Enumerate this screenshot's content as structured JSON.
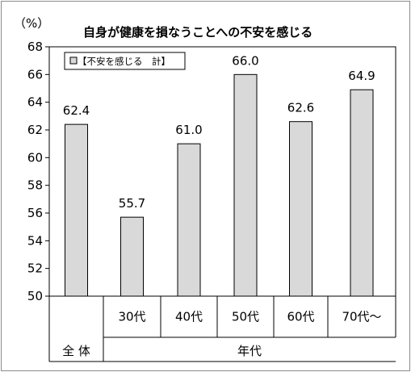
{
  "chart_data": {
    "type": "bar",
    "title": "自身が健康を損なうことへの不安を感じる",
    "ylabel": "（%）",
    "ylim": [
      50,
      68
    ],
    "ytick_step": 2,
    "grid": false,
    "legend": {
      "label": "【不安を感じる　計】",
      "placement": "top-left"
    },
    "categories": [
      "全体",
      "30代",
      "40代",
      "50代",
      "60代",
      "70代〜"
    ],
    "category_labels": [
      "",
      "30代",
      "40代",
      "50代",
      "60代",
      "70代〜"
    ],
    "values": [
      62.4,
      55.7,
      61.0,
      66.0,
      62.6,
      64.9
    ],
    "value_labels": [
      "62.4",
      "55.7",
      "61.0",
      "66.0",
      "62.6",
      "64.9"
    ],
    "group_labels": [
      {
        "label": "全 体"
      },
      {
        "label": "年代"
      }
    ],
    "bar_color": "#d9d9d9",
    "bar_stroke": "#000000"
  }
}
